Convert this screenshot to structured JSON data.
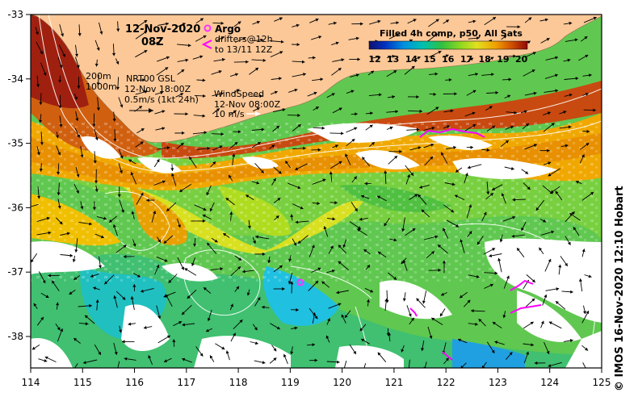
{
  "title": {
    "date": "12-Nov-2020",
    "hour": "08Z"
  },
  "legend_argo": {
    "argo_label": "Argo",
    "drifters_label": "drifters@12h",
    "drifters_range": "to 13/11 12Z",
    "argo_color": "#ff33ff",
    "drifter_color": "#ff00ff"
  },
  "contours": {
    "label_200": "200m",
    "label_1000": "1000m"
  },
  "currents": {
    "product": "NRT00 GSL",
    "time": "12-Nov 18:00Z",
    "scale": "0.5m/s (1kt 24h)"
  },
  "wind": {
    "label": "WindSpeed",
    "time": "12-Nov 08:00Z",
    "scale": "10 m/s"
  },
  "colorbar": {
    "title": "Filled 4h comp, p50, All Sats",
    "ticks": [
      "12",
      "13",
      "14",
      "15",
      "16",
      "17",
      "18",
      "19",
      "20"
    ],
    "colors": [
      "#1a1a80",
      "#0040d0",
      "#00a0e0",
      "#00c0a0",
      "#40c040",
      "#a0e020",
      "#e0e020",
      "#f0a000",
      "#d05000",
      "#a01010"
    ]
  },
  "axes": {
    "x_ticks": [
      "114",
      "115",
      "116",
      "117",
      "118",
      "119",
      "120",
      "121",
      "122",
      "123",
      "124",
      "125"
    ],
    "y_ticks": [
      "-33",
      "-34",
      "-35",
      "-36",
      "-37",
      "-38"
    ]
  },
  "land_color": "#fcc898",
  "credit": "© IMOS 16-Nov-2020 12:10 Hobart"
}
